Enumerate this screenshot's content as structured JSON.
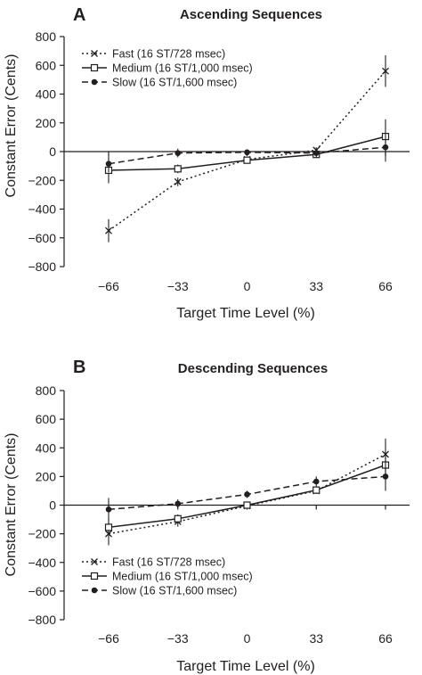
{
  "chart_data": [
    {
      "type": "line",
      "panel_label": "A",
      "title": "Ascending Sequences",
      "xlabel": "Target Time Level (%)",
      "ylabel": "Constant Error (Cents)",
      "x": [
        -66,
        -33,
        0,
        33,
        66
      ],
      "x_tick_labels": [
        "−66",
        "−33",
        "0",
        "33",
        "66"
      ],
      "ylim": [
        -800,
        800
      ],
      "y_ticks": [
        800,
        600,
        400,
        200,
        0,
        -200,
        -400,
        -600,
        -800
      ],
      "y_tick_labels": [
        "800",
        "600",
        "400",
        "200",
        "0",
        "−200",
        "−400",
        "−600",
        "−800"
      ],
      "legend_position": "top-left",
      "series": [
        {
          "name": "Fast (16 ST/728 msec)",
          "marker": "x",
          "line": "dotted",
          "values": [
            -550,
            -210,
            -55,
            10,
            560
          ],
          "errors": [
            80,
            30,
            20,
            20,
            110
          ]
        },
        {
          "name": "Medium (16 ST/1,000 msec)",
          "marker": "square",
          "line": "solid",
          "values": [
            -130,
            -120,
            -60,
            -20,
            105
          ],
          "errors": [
            90,
            30,
            15,
            15,
            120
          ]
        },
        {
          "name": "Slow (16 ST/1,600 msec)",
          "marker": "circle",
          "line": "dashed",
          "values": [
            -85,
            -10,
            -5,
            -10,
            30
          ],
          "errors": [
            60,
            30,
            20,
            30,
            100
          ]
        }
      ]
    },
    {
      "type": "line",
      "panel_label": "B",
      "title": "Descending Sequences",
      "xlabel": "Target Time Level (%)",
      "ylabel": "Constant Error (Cents)",
      "x": [
        -66,
        -33,
        0,
        33,
        66
      ],
      "x_tick_labels": [
        "−66",
        "−33",
        "0",
        "33",
        "66"
      ],
      "ylim": [
        -800,
        800
      ],
      "y_ticks": [
        800,
        600,
        400,
        200,
        0,
        -200,
        -400,
        -600,
        -800
      ],
      "y_tick_labels": [
        "800",
        "600",
        "400",
        "200",
        "0",
        "−200",
        "−400",
        "−600",
        "−800"
      ],
      "legend_position": "bottom-left",
      "series": [
        {
          "name": "Fast (16 ST/728 msec)",
          "marker": "x",
          "line": "dotted",
          "values": [
            -200,
            -115,
            -5,
            100,
            355
          ],
          "errors": [
            80,
            35,
            20,
            20,
            110
          ]
        },
        {
          "name": "Medium (16 ST/1,000 msec)",
          "marker": "square",
          "line": "solid",
          "values": [
            -155,
            -95,
            0,
            105,
            280
          ],
          "errors": [
            60,
            30,
            20,
            25,
            90
          ]
        },
        {
          "name": "Slow (16 ST/1,600 msec)",
          "marker": "circle",
          "line": "dashed",
          "values": [
            -30,
            10,
            75,
            165,
            200
          ],
          "errors": [
            80,
            30,
            25,
            35,
            100
          ]
        }
      ]
    }
  ]
}
